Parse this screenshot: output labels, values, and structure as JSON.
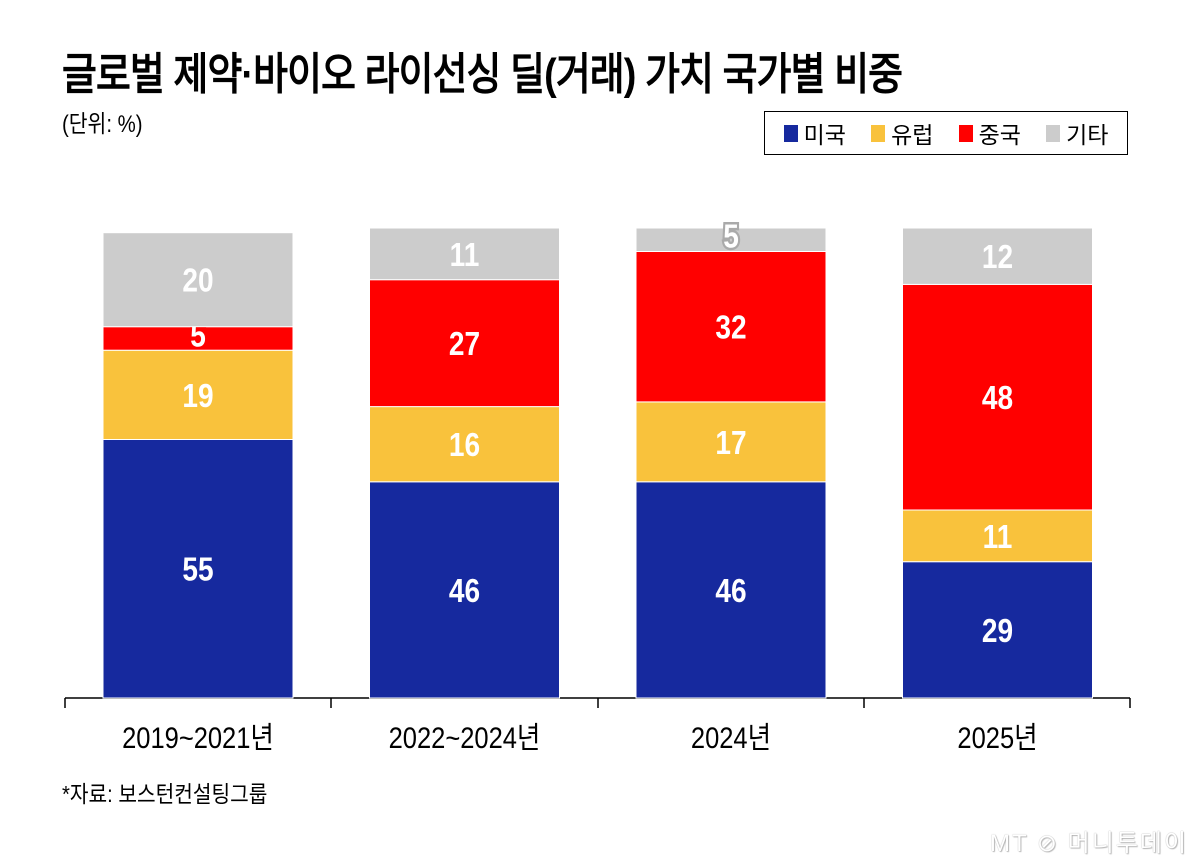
{
  "chart_data": {
    "type": "bar",
    "stacked": true,
    "title": "글로벌 제약·바이오 라이선싱 딜(거래) 가치 국가별 비중",
    "unit": "(단위: %)",
    "categories": [
      "2019~2021년",
      "2022~2024년",
      "2024년",
      "2025년"
    ],
    "series": [
      {
        "name": "미국",
        "color": "#16299e",
        "values": [
          55,
          46,
          46,
          29
        ]
      },
      {
        "name": "유럽",
        "color": "#f9c23c",
        "values": [
          19,
          16,
          17,
          11
        ]
      },
      {
        "name": "중국",
        "color": "#ff0000",
        "values": [
          5,
          27,
          32,
          48
        ]
      },
      {
        "name": "기타",
        "color": "#cccccc",
        "values": [
          20,
          11,
          5,
          12
        ]
      }
    ],
    "ylim": [
      0,
      100
    ],
    "grid": false,
    "legend_position": "top-right",
    "xlabel": "",
    "ylabel": ""
  },
  "source": "*자료: 보스턴컨설팅그룹",
  "watermark": "MT 머니투데이"
}
